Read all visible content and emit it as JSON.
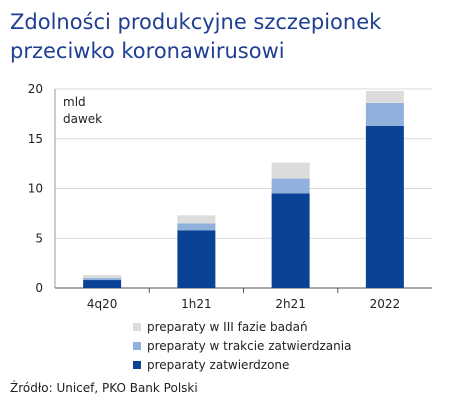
{
  "header": {
    "title_line1": "Zdolności produkcyjne szczepionek",
    "title_line2": "przeciwko koronawirusowi"
  },
  "source": "Źródło: Unicef, PKO Bank Polski",
  "chart_data": {
    "type": "bar",
    "stacked": true,
    "categories": [
      "4q20",
      "1h21",
      "2h21",
      "2022"
    ],
    "series": [
      {
        "name": "preparaty zatwierdzone",
        "color": "#0a4295",
        "values": [
          0.8,
          5.8,
          9.5,
          16.3
        ]
      },
      {
        "name": "preparaty w trakcie zatwierdzania",
        "color": "#8fb1dc",
        "values": [
          0.2,
          0.7,
          1.5,
          2.3
        ]
      },
      {
        "name": "preparaty w III fazie badań",
        "color": "#dcdcdc",
        "values": [
          0.3,
          0.8,
          1.6,
          1.2
        ]
      }
    ],
    "ylabel": "mld\ndawek",
    "ylabel_lines": [
      "mld",
      "dawek"
    ],
    "ylim": [
      0,
      20
    ],
    "yticks": [
      0,
      5,
      10,
      15,
      20
    ],
    "grid": true,
    "legend_position": "bottom"
  }
}
